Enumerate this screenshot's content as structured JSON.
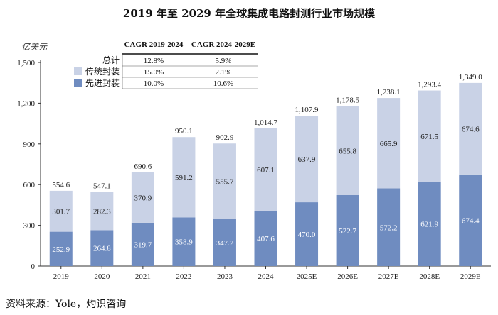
{
  "chart_data": {
    "type": "bar",
    "stacked": true,
    "title": "2019 年至 2029 年全球集成电路封测行业市场规模",
    "ylabel": "亿美元",
    "xlabel": "",
    "categories": [
      "2019",
      "2020",
      "2021",
      "2022",
      "2023",
      "2024",
      "2025E",
      "2026E",
      "2027E",
      "2028E",
      "2029E"
    ],
    "series": [
      {
        "name": "先进封装",
        "color": "#6f8cc0",
        "values": [
          252.9,
          264.8,
          319.7,
          358.9,
          347.2,
          407.6,
          470.0,
          522.7,
          572.2,
          621.9,
          674.4
        ]
      },
      {
        "name": "传统封装",
        "color": "#c9d2e6",
        "values": [
          301.7,
          282.3,
          370.9,
          591.2,
          555.7,
          607.1,
          637.9,
          655.8,
          665.9,
          671.5,
          674.6
        ]
      }
    ],
    "totals": [
      554.6,
      547.1,
      690.6,
      950.1,
      902.9,
      1014.7,
      1107.9,
      1178.5,
      1238.1,
      1293.4,
      1349.0
    ],
    "ylim": [
      0,
      1500
    ],
    "yticks": [
      0,
      300,
      600,
      900,
      1200,
      1500
    ],
    "grid": false,
    "legend_table": {
      "headers": [
        "CAGR 2019-2024",
        "CAGR 2024-2029E"
      ],
      "rows": [
        {
          "label": "总计",
          "marker": "none",
          "values": [
            "12.8%",
            "5.9%"
          ]
        },
        {
          "label": "传统封装",
          "marker": "light",
          "values": [
            "15.0%",
            "2.1%"
          ]
        },
        {
          "label": "先进封装",
          "marker": "dark",
          "values": [
            "10.0%",
            "10.6%"
          ]
        }
      ]
    }
  },
  "source_text": "资料来源：Yole，灼识咨询"
}
